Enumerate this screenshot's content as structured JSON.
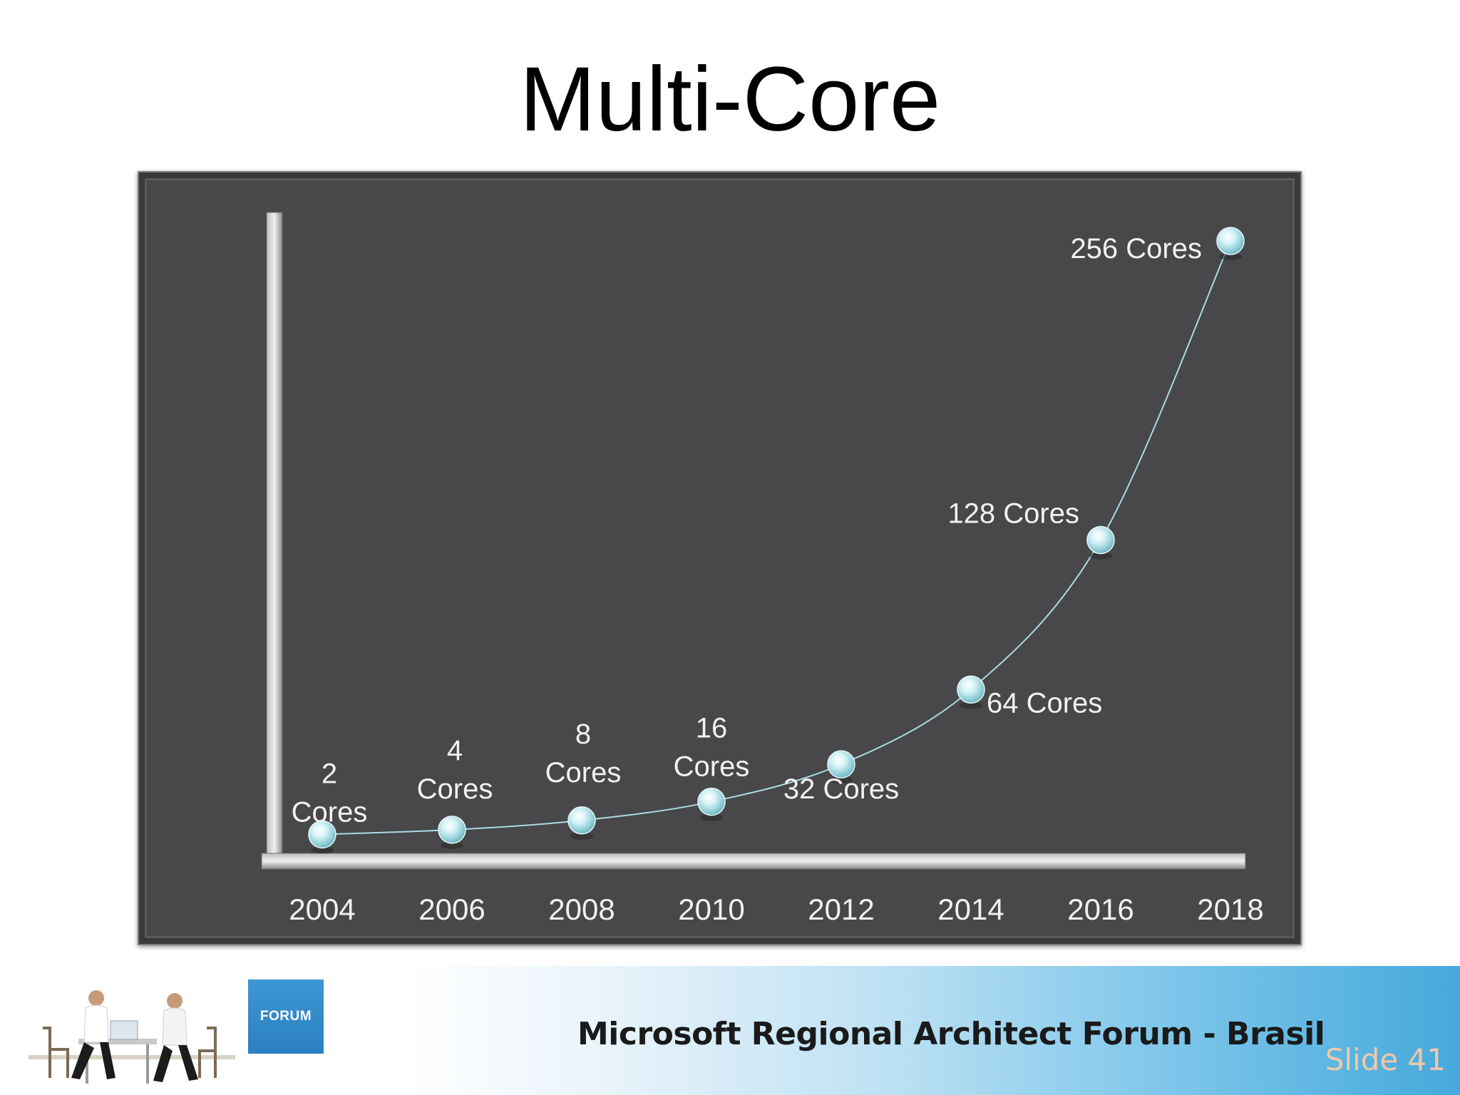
{
  "slide": {
    "title": "Multi-Core",
    "footer_text": "Microsoft Regional Architect Forum - Brasil",
    "logo_text": "FORUM",
    "slide_number": "Slide 41"
  },
  "chart_data": {
    "type": "line",
    "x": [
      "2004",
      "2006",
      "2008",
      "2010",
      "2012",
      "2014",
      "2016",
      "2018"
    ],
    "values": [
      2,
      4,
      8,
      16,
      32,
      64,
      128,
      256
    ],
    "point_labels": [
      [
        "2",
        "Cores"
      ],
      [
        "4",
        "Cores"
      ],
      [
        "8",
        "Cores"
      ],
      [
        "16",
        "Cores"
      ],
      [
        "32 Cores"
      ],
      [
        "64 Cores"
      ],
      [
        "128 Cores"
      ],
      [
        "256 Cores"
      ]
    ],
    "title": "",
    "xlabel": "",
    "ylabel": "",
    "grid": false,
    "colors": {
      "background": "#484749",
      "line": "#a9dbe3",
      "marker": "#bfe9f0",
      "text": "#f2f2f2"
    }
  }
}
